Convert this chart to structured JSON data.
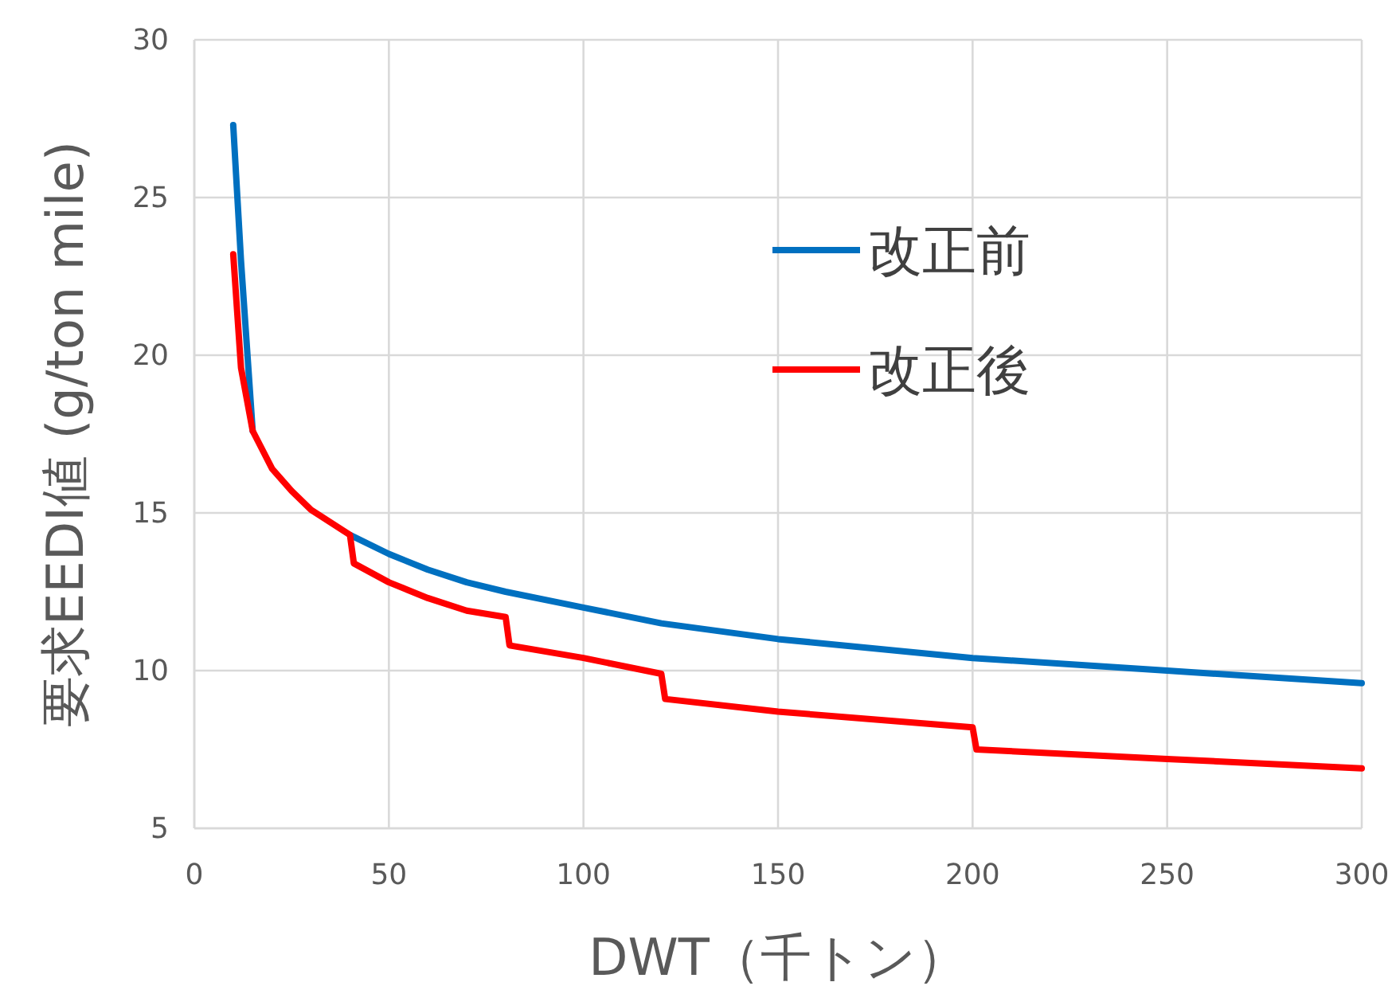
{
  "chart_data": {
    "type": "line",
    "xlabel": "DWT（千トン）",
    "ylabel": "要求EEDI値 (g/ton mile)",
    "xlim": [
      0,
      300
    ],
    "ylim": [
      5,
      30
    ],
    "xticks": [
      0,
      50,
      100,
      150,
      200,
      250,
      300
    ],
    "yticks": [
      5,
      10,
      15,
      20,
      25,
      30
    ],
    "grid": true,
    "legend": "top right",
    "marker": "none",
    "line_style": "solid",
    "series": [
      {
        "name": "改正前",
        "color": "#0070c0",
        "x": [
          10,
          12,
          15,
          20,
          40,
          50,
          60,
          70,
          80,
          100,
          120,
          150,
          200,
          250,
          300
        ],
        "values": [
          27.3,
          23.0,
          17.6,
          null,
          14.3,
          13.7,
          13.2,
          12.8,
          12.5,
          12.0,
          11.5,
          11.0,
          10.4,
          10.0,
          9.6
        ]
      },
      {
        "name": "改正後",
        "color": "#ff0000",
        "x": [
          10,
          12,
          15,
          20,
          25,
          30,
          35,
          40,
          41,
          50,
          60,
          70,
          80,
          81,
          100,
          120,
          121,
          150,
          200,
          201,
          250,
          300
        ],
        "values": [
          23.2,
          19.6,
          17.6,
          16.4,
          15.7,
          15.1,
          14.7,
          14.3,
          13.4,
          12.8,
          12.3,
          11.9,
          11.7,
          10.8,
          10.4,
          9.9,
          9.1,
          8.7,
          8.2,
          7.5,
          7.2,
          6.9
        ]
      }
    ]
  }
}
